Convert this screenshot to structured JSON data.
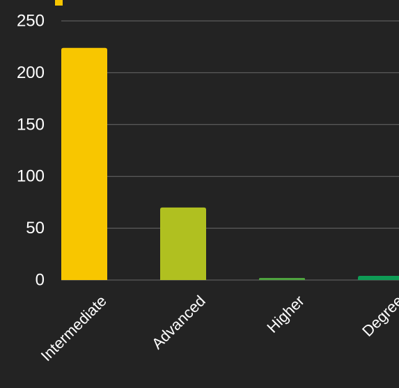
{
  "chart_data": {
    "type": "bar",
    "categories": [
      "Intermediate",
      "Advanced",
      "Higher",
      "Degree"
    ],
    "values": [
      224,
      70,
      2,
      4
    ],
    "colors": [
      "#f8c600",
      "#b0c020",
      "#4ea33e",
      "#0e9b55"
    ],
    "ylim": [
      0,
      250
    ],
    "yticks": [
      0,
      50,
      100,
      150,
      200,
      250
    ],
    "ytick_labels": [
      "0",
      "50",
      "100",
      "150",
      "200",
      "250"
    ],
    "grid": true,
    "legend": {
      "visible": true,
      "placement": "top-left",
      "entries": [
        {
          "color": "#f8c600",
          "label": ""
        }
      ]
    }
  }
}
